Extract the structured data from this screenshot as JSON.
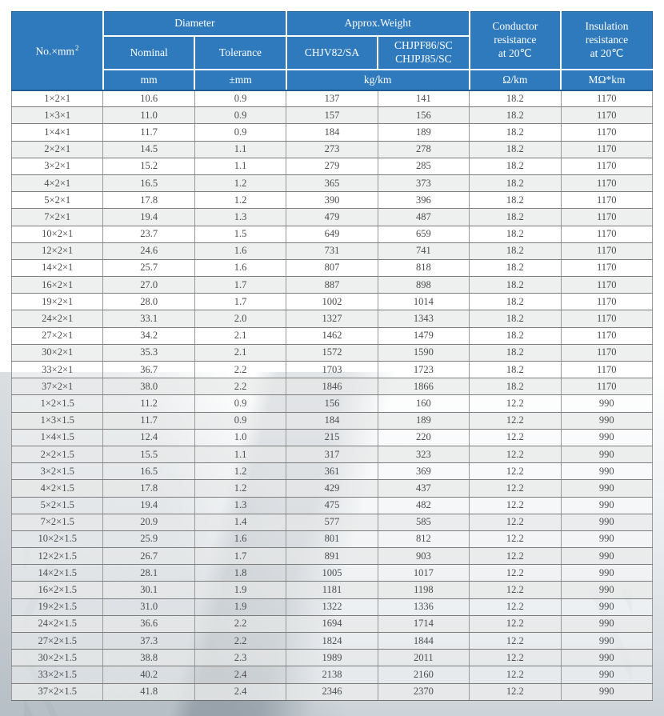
{
  "colors": {
    "header_bg": "#2e7abc",
    "header_text": "#ffffff",
    "row_bg": "#ffffff",
    "row_alt_bg": "#eeeeee",
    "grid_line": "#7d7d7d",
    "body_text": "#4d4d4d"
  },
  "table": {
    "header": {
      "no_label": "No.×mm",
      "no_sup": "2",
      "diameter": "Diameter",
      "approx_weight": "Approx.Weight",
      "nominal": "Nominal",
      "tolerance": "Tolerance",
      "chjv": "CHJV82/SA",
      "chjpf_line1": "CHJPF86/SC",
      "chjpf_line2": "CHJPJ85/SC",
      "conductor_line1": "Conductor",
      "conductor_line2": "resistance",
      "conductor_line3": "at 20℃",
      "insulation_line1": "Insulation",
      "insulation_line2": "resistance",
      "insulation_line3": "at 20℃",
      "unit_mm": "mm",
      "unit_tolerance": "±mm",
      "unit_weight": "kg/km",
      "unit_conductor": "Ω/km",
      "unit_insulation": "MΩ*km"
    },
    "rows": [
      [
        "1×2×1",
        "10.6",
        "0.9",
        "137",
        "141",
        "18.2",
        "1170"
      ],
      [
        "1×3×1",
        "11.0",
        "0.9",
        "157",
        "156",
        "18.2",
        "1170"
      ],
      [
        "1×4×1",
        "11.7",
        "0.9",
        "184",
        "189",
        "18.2",
        "1170"
      ],
      [
        "2×2×1",
        "14.5",
        "1.1",
        "273",
        "278",
        "18.2",
        "1170"
      ],
      [
        "3×2×1",
        "15.2",
        "1.1",
        "279",
        "285",
        "18.2",
        "1170"
      ],
      [
        "4×2×1",
        "16.5",
        "1.2",
        "365",
        "373",
        "18.2",
        "1170"
      ],
      [
        "5×2×1",
        "17.8",
        "1.2",
        "390",
        "396",
        "18.2",
        "1170"
      ],
      [
        "7×2×1",
        "19.4",
        "1.3",
        "479",
        "487",
        "18.2",
        "1170"
      ],
      [
        "10×2×1",
        "23.7",
        "1.5",
        "649",
        "659",
        "18.2",
        "1170"
      ],
      [
        "12×2×1",
        "24.6",
        "1.6",
        "731",
        "741",
        "18.2",
        "1170"
      ],
      [
        "14×2×1",
        "25.7",
        "1.6",
        "807",
        "818",
        "18.2",
        "1170"
      ],
      [
        "16×2×1",
        "27.0",
        "1.7",
        "887",
        "898",
        "18.2",
        "1170"
      ],
      [
        "19×2×1",
        "28.0",
        "1.7",
        "1002",
        "1014",
        "18.2",
        "1170"
      ],
      [
        "24×2×1",
        "33.1",
        "2.0",
        "1327",
        "1343",
        "18.2",
        "1170"
      ],
      [
        "27×2×1",
        "34.2",
        "2.1",
        "1462",
        "1479",
        "18.2",
        "1170"
      ],
      [
        "30×2×1",
        "35.3",
        "2.1",
        "1572",
        "1590",
        "18.2",
        "1170"
      ],
      [
        "33×2×1",
        "36.7",
        "2.2",
        "1703",
        "1723",
        "18.2",
        "1170"
      ],
      [
        "37×2×1",
        "38.0",
        "2.2",
        "1846",
        "1866",
        "18.2",
        "1170"
      ],
      [
        "1×2×1.5",
        "11.2",
        "0.9",
        "156",
        "160",
        "12.2",
        "990"
      ],
      [
        "1×3×1.5",
        "11.7",
        "0.9",
        "184",
        "189",
        "12.2",
        "990"
      ],
      [
        "1×4×1.5",
        "12.4",
        "1.0",
        "215",
        "220",
        "12.2",
        "990"
      ],
      [
        "2×2×1.5",
        "15.5",
        "1.1",
        "317",
        "323",
        "12.2",
        "990"
      ],
      [
        "3×2×1.5",
        "16.5",
        "1.2",
        "361",
        "369",
        "12.2",
        "990"
      ],
      [
        "4×2×1.5",
        "17.8",
        "1.2",
        "429",
        "437",
        "12.2",
        "990"
      ],
      [
        "5×2×1.5",
        "19.4",
        "1.3",
        "475",
        "482",
        "12.2",
        "990"
      ],
      [
        "7×2×1.5",
        "20.9",
        "1.4",
        "577",
        "585",
        "12.2",
        "990"
      ],
      [
        "10×2×1.5",
        "25.9",
        "1.6",
        "801",
        "812",
        "12.2",
        "990"
      ],
      [
        "12×2×1.5",
        "26.7",
        "1.7",
        "891",
        "903",
        "12.2",
        "990"
      ],
      [
        "14×2×1.5",
        "28.1",
        "1.8",
        "1005",
        "1017",
        "12.2",
        "990"
      ],
      [
        "16×2×1.5",
        "30.1",
        "1.9",
        "1181",
        "1198",
        "12.2",
        "990"
      ],
      [
        "19×2×1.5",
        "31.0",
        "1.9",
        "1322",
        "1336",
        "12.2",
        "990"
      ],
      [
        "24×2×1.5",
        "36.6",
        "2.2",
        "1694",
        "1714",
        "12.2",
        "990"
      ],
      [
        "27×2×1.5",
        "37.3",
        "2.2",
        "1824",
        "1844",
        "12.2",
        "990"
      ],
      [
        "30×2×1.5",
        "38.8",
        "2.3",
        "1989",
        "2011",
        "12.2",
        "990"
      ],
      [
        "33×2×1.5",
        "40.2",
        "2.4",
        "2138",
        "2160",
        "12.2",
        "990"
      ],
      [
        "37×2×1.5",
        "41.8",
        "2.4",
        "2346",
        "2370",
        "12.2",
        "990"
      ]
    ]
  }
}
